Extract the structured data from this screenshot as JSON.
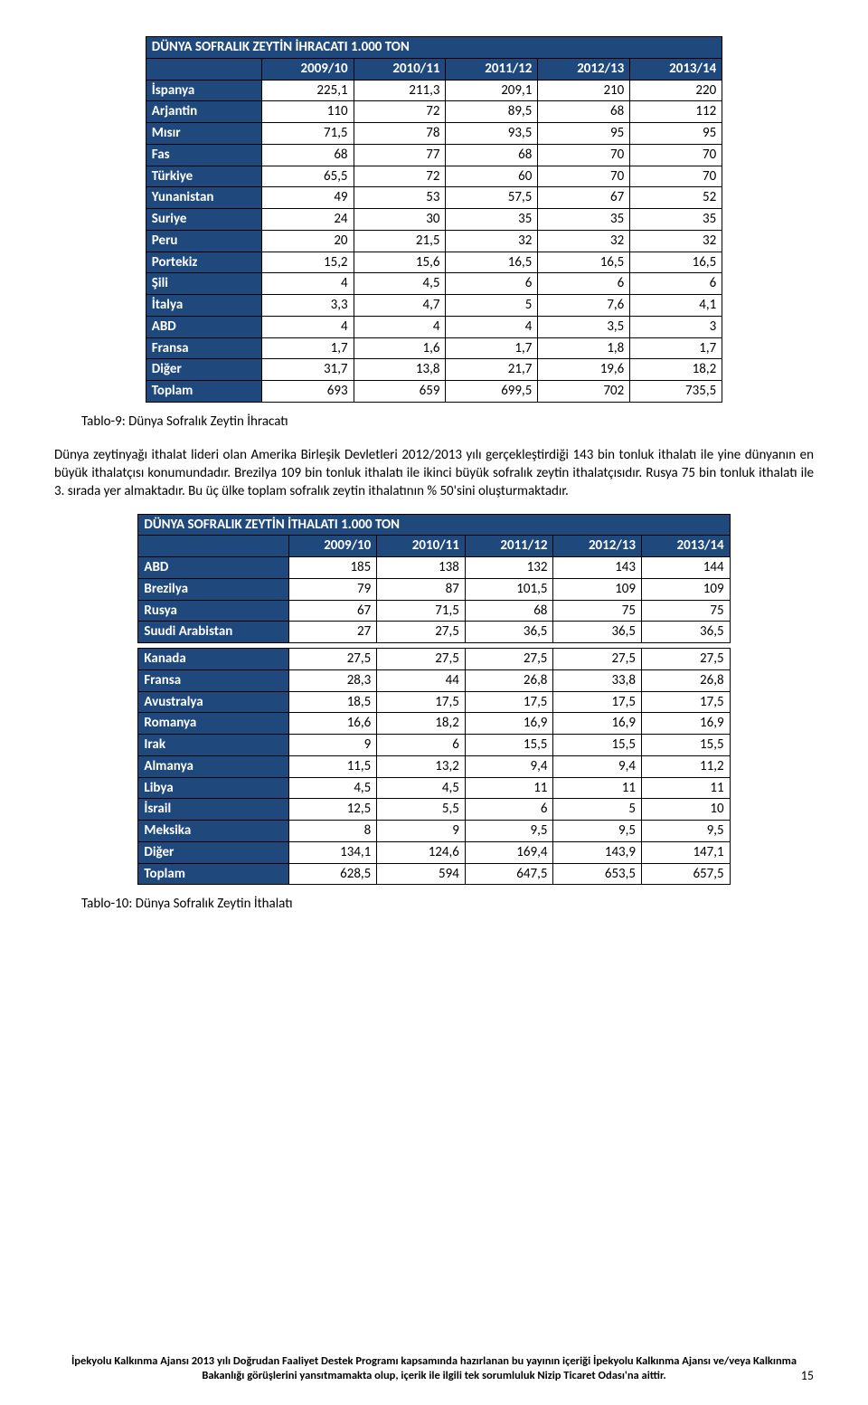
{
  "table1": {
    "title": "DÜNYA SOFRALIK ZEYTİN İHRACATI 1.000 TON",
    "years": [
      "2009/10",
      "2010/11",
      "2011/12",
      "2012/13",
      "2013/14"
    ],
    "rows": [
      {
        "label": "İspanya",
        "vals": [
          "225,1",
          "211,3",
          "209,1",
          "210",
          "220"
        ]
      },
      {
        "label": "Arjantin",
        "vals": [
          "110",
          "72",
          "89,5",
          "68",
          "112"
        ]
      },
      {
        "label": "Mısır",
        "vals": [
          "71,5",
          "78",
          "93,5",
          "95",
          "95"
        ]
      },
      {
        "label": "Fas",
        "vals": [
          "68",
          "77",
          "68",
          "70",
          "70"
        ]
      },
      {
        "label": "Türkiye",
        "vals": [
          "65,5",
          "72",
          "60",
          "70",
          "70"
        ]
      },
      {
        "label": "Yunanistan",
        "vals": [
          "49",
          "53",
          "57,5",
          "67",
          "52"
        ]
      },
      {
        "label": "Suriye",
        "vals": [
          "24",
          "30",
          "35",
          "35",
          "35"
        ]
      },
      {
        "label": "Peru",
        "vals": [
          "20",
          "21,5",
          "32",
          "32",
          "32"
        ]
      },
      {
        "label": "Portekiz",
        "vals": [
          "15,2",
          "15,6",
          "16,5",
          "16,5",
          "16,5"
        ]
      },
      {
        "label": "Şili",
        "vals": [
          "4",
          "4,5",
          "6",
          "6",
          "6"
        ]
      },
      {
        "label": "İtalya",
        "vals": [
          "3,3",
          "4,7",
          "5",
          "7,6",
          "4,1"
        ]
      },
      {
        "label": "ABD",
        "vals": [
          "4",
          "4",
          "4",
          "3,5",
          "3"
        ]
      },
      {
        "label": "Fransa",
        "vals": [
          "1,7",
          "1,6",
          "1,7",
          "1,8",
          "1,7"
        ]
      },
      {
        "label": "Diğer",
        "vals": [
          "31,7",
          "13,8",
          "21,7",
          "19,6",
          "18,2"
        ]
      },
      {
        "label": "Toplam",
        "vals": [
          "693",
          "659",
          "699,5",
          "702",
          "735,5"
        ]
      }
    ],
    "caption": "Tablo-9: Dünya Sofralık Zeytin İhracatı"
  },
  "paragraph": "Dünya zeytinyağı ithalat lideri olan Amerika Birleşik Devletleri 2012/2013 yılı gerçekleştirdiği 143 bin tonluk ithalatı ile yine dünyanın en büyük ithalatçısı konumundadır. Brezilya 109 bin tonluk ithalatı ile ikinci büyük sofralık zeytin ithalatçısıdır. Rusya 75 bin tonluk ithalatı ile 3. sırada yer almaktadır. Bu üç ülke toplam sofralık zeytin ithalatının  % 50'sini oluşturmaktadır.",
  "table2": {
    "title": "DÜNYA SOFRALIK ZEYTİN İTHALATI 1.000 TON",
    "years": [
      "2009/10",
      "2010/11",
      "2011/12",
      "2012/13",
      "2013/14"
    ],
    "rows": [
      {
        "label": "ABD",
        "vals": [
          "185",
          "138",
          "132",
          "143",
          "144"
        ]
      },
      {
        "label": "Brezilya",
        "vals": [
          "79",
          "87",
          "101,5",
          "109",
          "109"
        ]
      },
      {
        "label": "Rusya",
        "vals": [
          "67",
          "71,5",
          "68",
          "75",
          "75"
        ]
      },
      {
        "label": "Suudi Arabistan",
        "vals": [
          "27",
          "27,5",
          "36,5",
          "36,5",
          "36,5"
        ]
      },
      {
        "label": "Kanada",
        "vals": [
          "27,5",
          "27,5",
          "27,5",
          "27,5",
          "27,5"
        ]
      },
      {
        "label": "Fransa",
        "vals": [
          "28,3",
          "44",
          "26,8",
          "33,8",
          "26,8"
        ]
      },
      {
        "label": "Avustralya",
        "vals": [
          "18,5",
          "17,5",
          "17,5",
          "17,5",
          "17,5"
        ]
      },
      {
        "label": "Romanya",
        "vals": [
          "16,6",
          "18,2",
          "16,9",
          "16,9",
          "16,9"
        ]
      },
      {
        "label": "Irak",
        "vals": [
          "9",
          "6",
          "15,5",
          "15,5",
          "15,5"
        ]
      },
      {
        "label": "Almanya",
        "vals": [
          "11,5",
          "13,2",
          "9,4",
          "9,4",
          "11,2"
        ]
      },
      {
        "label": "Libya",
        "vals": [
          "4,5",
          "4,5",
          "11",
          "11",
          "11"
        ]
      },
      {
        "label": "İsrail",
        "vals": [
          "12,5",
          "5,5",
          "6",
          "5",
          "10"
        ]
      },
      {
        "label": "Meksika",
        "vals": [
          "8",
          "9",
          "9,5",
          "9,5",
          "9,5"
        ]
      },
      {
        "label": "Diğer",
        "vals": [
          "134,1",
          "124,6",
          "169,4",
          "143,9",
          "147,1"
        ]
      },
      {
        "label": "Toplam",
        "vals": [
          "628,5",
          "594",
          "647,5",
          "653,5",
          "657,5"
        ]
      }
    ],
    "caption": "Tablo-10: Dünya Sofralık Zeytin İthalatı",
    "gap_after_index": 3
  },
  "footer": "İpekyolu Kalkınma Ajansı 2013 yılı Doğrudan Faaliyet Destek Programı kapsamında hazırlanan bu yayının içeriği İpekyolu Kalkınma Ajansı ve/veya Kalkınma Bakanlığı görüşlerini yansıtmamakta olup, içerik ile ilgili tek sorumluluk Nizip Ticaret Odası'na aittir.",
  "page_number": "15",
  "style": {
    "header_bg": "#1f497d",
    "header_fg": "#ffffff",
    "cell_bg": "#ffffff",
    "cell_fg": "#000000",
    "border_color": "#000000",
    "body_font": "Calibri",
    "body_fontsize_pt": 11,
    "caption_fontsize_pt": 11,
    "footer_fontsize_pt": 9
  }
}
